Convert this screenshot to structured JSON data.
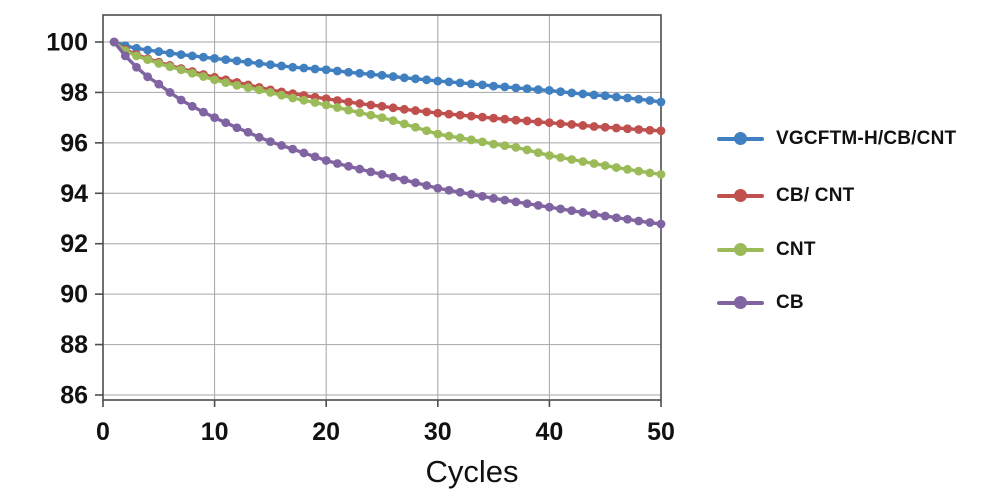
{
  "chart_data": {
    "type": "line",
    "title": "",
    "xlabel": "Cycles",
    "ylabel": "",
    "xlim": [
      0,
      50
    ],
    "ylim": [
      85.8,
      101.1
    ],
    "x_ticks": [
      0,
      10,
      20,
      30,
      40,
      50
    ],
    "y_ticks": [
      86,
      88,
      90,
      92,
      94,
      96,
      98,
      100
    ],
    "grid": true,
    "legend_position": "right",
    "x": [
      1,
      2,
      3,
      4,
      5,
      6,
      7,
      8,
      9,
      10,
      11,
      12,
      13,
      14,
      15,
      16,
      17,
      18,
      19,
      20,
      21,
      22,
      23,
      24,
      25,
      26,
      27,
      28,
      29,
      30,
      31,
      32,
      33,
      34,
      35,
      36,
      37,
      38,
      39,
      40,
      41,
      42,
      43,
      44,
      45,
      46,
      47,
      48,
      49,
      50
    ],
    "series": [
      {
        "name": "VGCFTM-H/CB/CNT",
        "color": "#4080C1",
        "marker": "circle",
        "values": [
          100.0,
          99.85,
          99.75,
          99.68,
          99.62,
          99.56,
          99.5,
          99.45,
          99.4,
          99.35,
          99.3,
          99.25,
          99.2,
          99.15,
          99.1,
          99.05,
          99.0,
          98.97,
          98.93,
          98.9,
          98.85,
          98.8,
          98.76,
          98.72,
          98.68,
          98.63,
          98.58,
          98.54,
          98.5,
          98.45,
          98.42,
          98.38,
          98.34,
          98.3,
          98.25,
          98.22,
          98.18,
          98.15,
          98.11,
          98.08,
          98.03,
          97.98,
          97.94,
          97.9,
          97.87,
          97.82,
          97.78,
          97.73,
          97.68,
          97.62
        ]
      },
      {
        "name": "CB/ CNT",
        "color": "#C0504D",
        "marker": "circle",
        "values": [
          100.0,
          99.7,
          99.5,
          99.34,
          99.2,
          99.07,
          98.95,
          98.83,
          98.71,
          98.6,
          98.5,
          98.4,
          98.3,
          98.2,
          98.1,
          98.02,
          97.95,
          97.88,
          97.81,
          97.75,
          97.68,
          97.62,
          97.56,
          97.5,
          97.45,
          97.39,
          97.33,
          97.28,
          97.23,
          97.18,
          97.14,
          97.1,
          97.06,
          97.02,
          96.98,
          96.94,
          96.9,
          96.87,
          96.83,
          96.8,
          96.76,
          96.73,
          96.69,
          96.65,
          96.62,
          96.59,
          96.56,
          96.53,
          96.5,
          96.48
        ]
      },
      {
        "name": "CNT",
        "color": "#9BBB59",
        "marker": "circle",
        "values": [
          100.0,
          99.65,
          99.45,
          99.3,
          99.15,
          99.02,
          98.9,
          98.76,
          98.63,
          98.5,
          98.39,
          98.28,
          98.19,
          98.1,
          98.0,
          97.89,
          97.78,
          97.69,
          97.6,
          97.5,
          97.4,
          97.3,
          97.2,
          97.1,
          97.0,
          96.88,
          96.75,
          96.62,
          96.48,
          96.35,
          96.27,
          96.2,
          96.12,
          96.04,
          95.95,
          95.89,
          95.82,
          95.72,
          95.61,
          95.5,
          95.42,
          95.34,
          95.26,
          95.18,
          95.1,
          95.02,
          94.95,
          94.88,
          94.81,
          94.75
        ]
      },
      {
        "name": "CB",
        "color": "#8064A2",
        "marker": "circle",
        "values": [
          100.0,
          99.45,
          99.0,
          98.62,
          98.33,
          98.0,
          97.7,
          97.45,
          97.22,
          97.0,
          96.8,
          96.6,
          96.42,
          96.22,
          96.05,
          95.9,
          95.75,
          95.6,
          95.45,
          95.3,
          95.18,
          95.07,
          94.96,
          94.85,
          94.75,
          94.64,
          94.53,
          94.42,
          94.31,
          94.2,
          94.12,
          94.04,
          93.96,
          93.88,
          93.8,
          93.73,
          93.66,
          93.59,
          93.52,
          93.45,
          93.38,
          93.31,
          93.24,
          93.17,
          93.1,
          93.03,
          92.97,
          92.9,
          92.84,
          92.78
        ]
      }
    ]
  },
  "colors": {
    "gridline": "#A6A6A6",
    "axis": "#4D4D4D",
    "tick_text": "#111111",
    "background": "#FFFFFF"
  }
}
